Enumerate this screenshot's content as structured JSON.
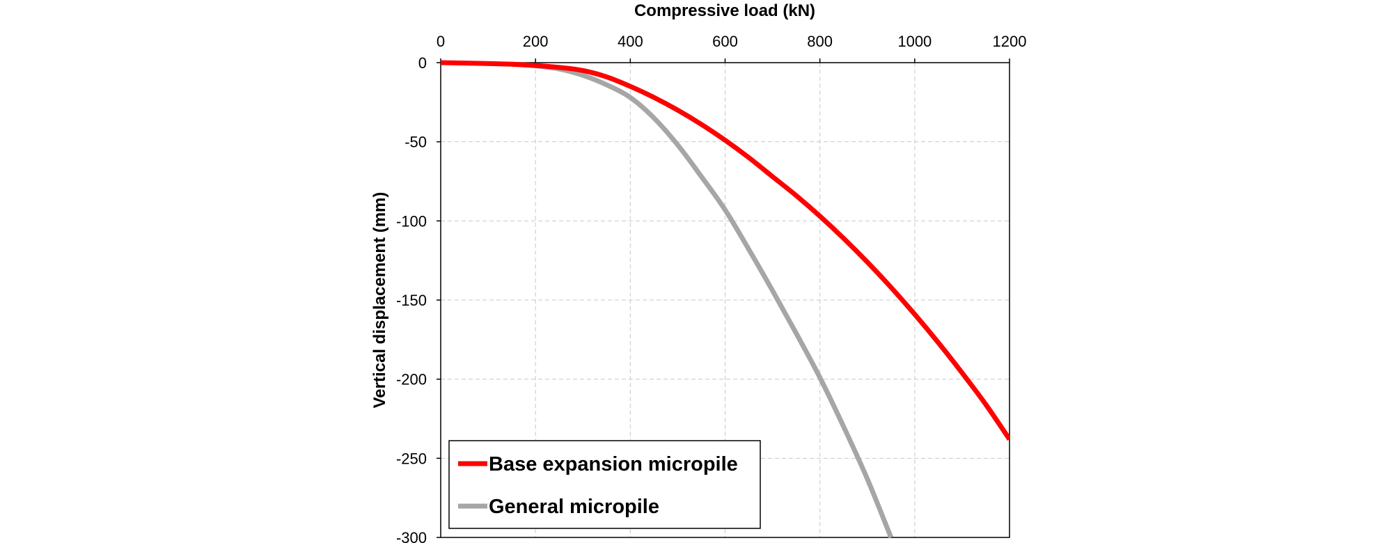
{
  "chart_data": {
    "type": "line",
    "title": "",
    "xlabel": "Compressive load (kN)",
    "ylabel": "Vertical displacement (mm)",
    "xlim": [
      0,
      1200
    ],
    "ylim": [
      -300,
      0
    ],
    "xticks": [
      0,
      200,
      400,
      600,
      800,
      1000,
      1200
    ],
    "yticks": [
      0,
      -50,
      -100,
      -150,
      -200,
      -250,
      -300
    ],
    "x_axis_position": "top",
    "grid": true,
    "legend_position": "bottom-left",
    "series": [
      {
        "name": "Base expansion micropile",
        "color": "#ff0000",
        "x": [
          0,
          150,
          250,
          300,
          350,
          400,
          450,
          500,
          550,
          600,
          650,
          700,
          750,
          800,
          850,
          900,
          950,
          1000,
          1050,
          1100,
          1150,
          1200
        ],
        "y": [
          0,
          -1,
          -3,
          -5,
          -9,
          -15,
          -22,
          -30,
          -39,
          -49,
          -60,
          -72,
          -84,
          -97,
          -111,
          -126,
          -142,
          -159,
          -177,
          -196,
          -216,
          -238
        ]
      },
      {
        "name": "General micropile",
        "color": "#a6a6a6",
        "x": [
          150,
          200,
          250,
          300,
          350,
          400,
          450,
          500,
          550,
          600,
          650,
          700,
          750,
          800,
          850,
          900,
          950
        ],
        "y": [
          -1,
          -2,
          -4,
          -8,
          -14,
          -22,
          -35,
          -52,
          -72,
          -93,
          -118,
          -144,
          -171,
          -199,
          -230,
          -263,
          -300
        ]
      }
    ]
  }
}
